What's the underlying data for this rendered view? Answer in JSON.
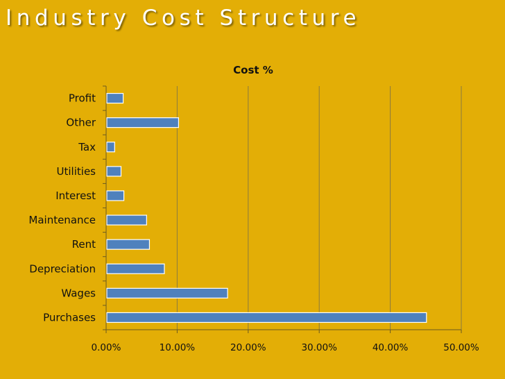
{
  "slide": {
    "title": "Industry Cost Structure"
  },
  "colors": {
    "background": "#E3AE06",
    "bar_fill": "#4F81BD",
    "bar_stroke": "#ffffff",
    "grid": "#8a7a40",
    "axis": "#6b5a20"
  },
  "chart_data": {
    "type": "bar",
    "orientation": "horizontal",
    "title": "Cost %",
    "categories": [
      "Profit",
      "Other",
      "Tax",
      "Utilities",
      "Interest",
      "Maintenance",
      "Rent",
      "Depreciation",
      "Wages",
      "Purchases"
    ],
    "series": [
      {
        "values": [
          2.3,
          10.1,
          1.1,
          2.0,
          2.4,
          5.6,
          6.0,
          8.1,
          17.0,
          45.0
        ]
      }
    ],
    "xlim": [
      0,
      50
    ],
    "xticks": [
      0,
      10,
      20,
      30,
      40,
      50
    ],
    "xtick_labels": [
      "0.00%",
      "10.00%",
      "20.00%",
      "30.00%",
      "40.00%",
      "50.00%"
    ],
    "xlabel": "",
    "ylabel": "",
    "grid": "vertical",
    "legend": "none"
  }
}
